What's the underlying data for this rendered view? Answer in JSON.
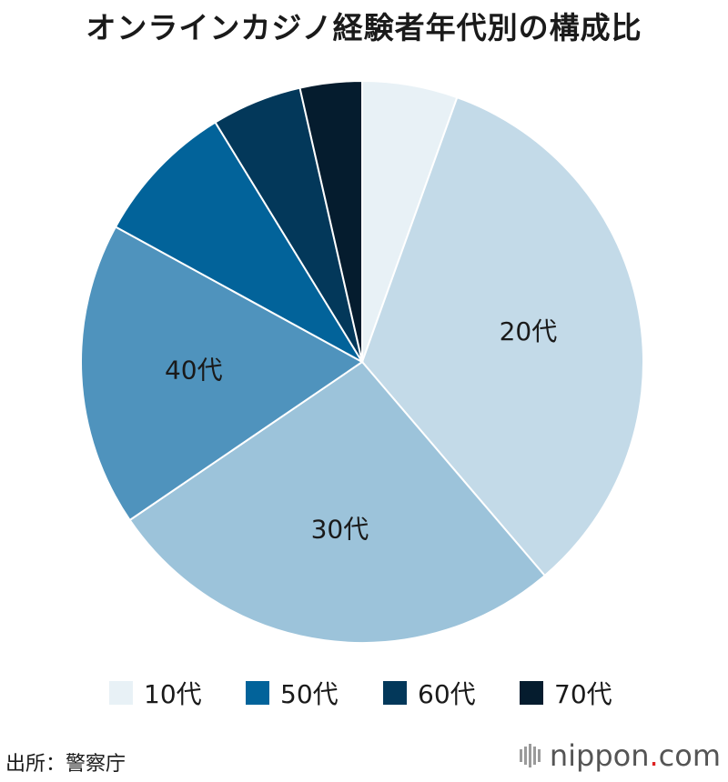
{
  "title": "オンラインカジノ経験者年代別の構成比",
  "chart_data": {
    "type": "pie",
    "title": "オンラインカジノ経験者年代別の構成比",
    "categories": [
      "10代",
      "20代",
      "30代",
      "40代",
      "50代",
      "60代",
      "70代"
    ],
    "values": [
      5.7,
      34.6,
      27.8,
      18.2,
      8.6,
      5.4,
      3.7
    ],
    "colors": [
      "#e8f1f6",
      "#c3dae8",
      "#9cc3da",
      "#4f93bd",
      "#02639a",
      "#03385a",
      "#051c2e"
    ],
    "slice_labels": [
      "",
      "20代",
      "30代",
      "40代",
      "",
      "",
      ""
    ],
    "label_colors": [
      "#1a1a1a",
      "#1a1a1a",
      "#1a1a1a",
      "#1a1a1a",
      "#ffffff",
      "#ffffff",
      "#ffffff"
    ],
    "start": "12 o'clock",
    "direction": "clockwise"
  },
  "legend": [
    {
      "label": "10代",
      "color": "#e8f1f6"
    },
    {
      "label": "50代",
      "color": "#02639a"
    },
    {
      "label": "60代",
      "color": "#03385a"
    },
    {
      "label": "70代",
      "color": "#051c2e"
    }
  ],
  "source": "出所：警察庁",
  "brand": {
    "name": "nippon",
    "dot": ".",
    "tld": "com"
  }
}
